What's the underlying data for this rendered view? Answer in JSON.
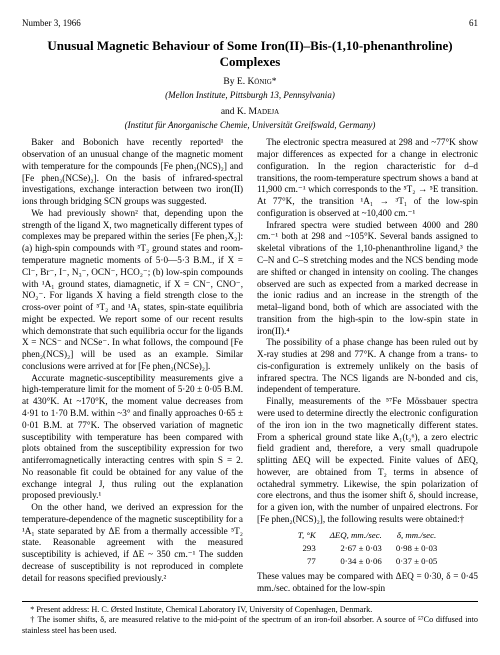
{
  "header": {
    "issue": "Number 3, 1966",
    "page": "61"
  },
  "title": "Unusual Magnetic Behaviour of Some Iron(II)–Bis-(1,10-phenanthroline) Complexes",
  "authors": {
    "by": "By",
    "name1": "E. König*",
    "affil1": "(Mellon Institute, Pittsburgh 13, Pennsylvania)",
    "and": "and",
    "name2": "K. Madeja",
    "affil2": "(Institut für Anorganische Chemie, Universität Greifswald, Germany)"
  },
  "body": {
    "p1": "Baker and Bobonich have recently reported¹ the observation of an unusual change of the magnetic moment with temperature for the compounds [Fe phen₂(NCS)₂] and [Fe phen₂(NCSe)₂]. On the basis of infrared-spectral investigations, exchange interaction between two iron(II) ions through bridging SCN groups was suggested.",
    "p2": "We had previously shown² that, depending upon the strength of the ligand X, two magnetically different types of complexes may be prepared within the series [Fe phen₂X₂]: (a) high-spin compounds with ⁵T₂ ground states and room-temperature magnetic moments of 5·0—5·3 B.M., if X = Cl⁻, Br⁻, I⁻, N₃⁻, OCN⁻, HCO₂⁻; (b) low-spin compounds with ¹A₁ ground states, diamagnetic, if X = CN⁻, CNO⁻, NO₂⁻. For ligands X having a field strength close to the cross-over point of ⁵T₂ and ¹A₁ states, spin-state equilibria might be expected. We report some of our recent results which demonstrate that such equilibria occur for the ligands X = NCS⁻ and NCSe⁻. In what follows, the compound [Fe phen₂(NCS)₂] will be used as an example. Similar conclusions were arrived at for [Fe phen₂(NCSe)₂].",
    "p3": "Accurate magnetic-susceptibility measurements give a high-temperature limit for the moment of 5·20 ± 0·05 B.M. at 430°K. At ~170°K, the moment value decreases from 4·91 to 1·70 B.M. within ~3° and finally approaches 0·65 ± 0·01 B.M. at 77°K. The observed variation of magnetic susceptibility with temperature has been compared with plots obtained from the susceptibility expression for two antiferromagnetically interacting centres with spin S = 2. No reasonable fit could be obtained for any value of the exchange integral J, thus ruling out the explanation proposed previously.¹",
    "p4": "On the other hand, we derived an expression for the temperature-dependence of the magnetic susceptibility for a ¹A₁ state separated by ΔE from a thermally accessible ⁵T₂ state. Reasonable agreement with the measured susceptibility is achieved, if ΔE ~ 350 cm.⁻¹ The sudden decrease of susceptibility is not reproduced in complete detail for reasons specified previously.²",
    "p5": "The electronic spectra measured at 298 and ~77°K show major differences as expected for a change in electronic configuration. In the region characteristic for d–d transitions, the room-temperature spectrum shows a band at 11,900 cm.⁻¹ which corresponds to the ⁵T₂ → ⁵E transition. At 77°K, the transition ¹A₁ → ³T₁ of the low-spin configuration is observed at ~10,400 cm.⁻¹",
    "p6": "Infrared spectra were studied between 4000 and 280 cm.⁻¹ both at 298 and ~105°K. Several bands assigned to skeletal vibrations of the 1,10-phenanthroline ligand,³ the C–N and C–S stretching modes and the NCS bending mode are shifted or changed in intensity on cooling. The changes observed are such as expected from a marked decrease in the ionic radius and an increase in the strength of the metal–ligand bond, both of which are associated with the transition from the high-spin to the low-spin state in iron(II).⁴",
    "p7": "The possibility of a phase change has been ruled out by X-ray studies at 298 and 77°K. A change from a trans- to cis-configuration is extremely unlikely on the basis of infrared spectra. The NCS ligands are N-bonded and cis, independent of temperature.",
    "p8": "Finally, measurements of the ⁵⁷Fe Mössbauer spectra were used to determine directly the electronic configuration of the iron ion in the two magnetically different states. From a spherical ground state like A₁(t₂⁶), a zero electric field gradient and, therefore, a very small quadrupole splitting ΔEQ will be expected. Finite values of ΔEQ, however, are obtained from T₂ terms in absence of octahedral symmetry. Likewise, the spin polarization of core electrons, and thus the isomer shift δ, should increase, for a given ion, with the number of unpaired electrons. For [Fe phen₂(NCS)₂], the following results were obtained:†",
    "p9": "These values may be compared with ΔEQ = 0·30, δ = 0·45 mm./sec. obtained for the low-spin"
  },
  "table": {
    "h1": "T, °K",
    "h2": "ΔEQ, mm./sec.",
    "h3": "δ, mm./sec.",
    "r1c1": "293",
    "r1c2": "2·67 ± 0·03",
    "r1c3": "0·98 ± 0·03",
    "r2c1": "77",
    "r2c2": "0·34 ± 0·06",
    "r2c3": "0·37 ± 0·05"
  },
  "footnotes": {
    "f1": "* Present address: H. C. Ørsted Institute, Chemical Laboratory IV, University of Copenhagen, Denmark.",
    "f2": "† The isomer shifts, δ, are measured relative to the mid-point of the spectrum of an iron-foil absorber.   A source of ⁵⁷Co diffused into stainless steel has been used."
  }
}
